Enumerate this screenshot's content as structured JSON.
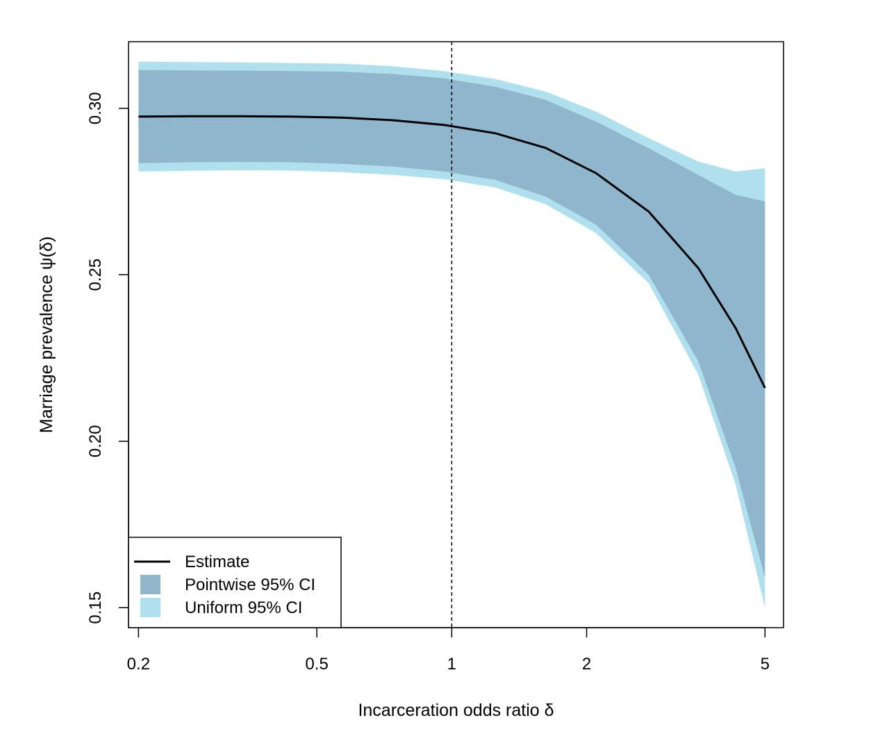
{
  "chart_data": {
    "type": "area",
    "xlabel": "Incarceration odds ratio δ",
    "ylabel": "Marriage prevalence ψ(δ)",
    "x_scale": "log",
    "xlim": [
      0.19,
      5.5
    ],
    "ylim": [
      0.144,
      0.32
    ],
    "x_ticks": [
      {
        "value": 0.2,
        "label": "0.2"
      },
      {
        "value": 0.5,
        "label": "0.5"
      },
      {
        "value": 1,
        "label": "1"
      },
      {
        "value": 2,
        "label": "2"
      },
      {
        "value": 5,
        "label": "5"
      }
    ],
    "y_ticks": [
      {
        "value": 0.15,
        "label": "0.15"
      },
      {
        "value": 0.2,
        "label": "0.20"
      },
      {
        "value": 0.25,
        "label": "0.25"
      },
      {
        "value": 0.3,
        "label": "0.30"
      }
    ],
    "reference_line": {
      "x": 1,
      "style": "dashed"
    },
    "x": [
      0.2,
      0.26,
      0.34,
      0.44,
      0.57,
      0.74,
      0.96,
      1.25,
      1.62,
      2.1,
      2.75,
      3.55,
      4.3,
      5.0
    ],
    "series": [
      {
        "name": "Estimate",
        "color": "#000000",
        "values": [
          0.2975,
          0.2976,
          0.2976,
          0.2975,
          0.2972,
          0.2964,
          0.295,
          0.2925,
          0.2881,
          0.2805,
          0.269,
          0.252,
          0.234,
          0.216
        ]
      },
      {
        "name": "Pointwise 95% CI",
        "color": "#8fb6cc",
        "lower": [
          0.2835,
          0.2838,
          0.2839,
          0.2838,
          0.2833,
          0.2825,
          0.281,
          0.2785,
          0.2735,
          0.265,
          0.25,
          0.224,
          0.192,
          0.159
        ],
        "upper": [
          0.3115,
          0.3114,
          0.3113,
          0.3112,
          0.311,
          0.3103,
          0.309,
          0.3065,
          0.3025,
          0.296,
          0.288,
          0.28,
          0.274,
          0.272
        ]
      },
      {
        "name": "Uniform 95% CI",
        "color": "#b0dfed",
        "lower": [
          0.281,
          0.2812,
          0.2814,
          0.2813,
          0.2808,
          0.28,
          0.2787,
          0.2762,
          0.2712,
          0.2625,
          0.2475,
          0.22,
          0.187,
          0.15
        ],
        "upper": [
          0.314,
          0.3139,
          0.3138,
          0.3136,
          0.3134,
          0.3126,
          0.3112,
          0.3088,
          0.305,
          0.299,
          0.291,
          0.284,
          0.281,
          0.282
        ]
      }
    ],
    "legend": {
      "position": "bottom-left",
      "items": [
        {
          "label": "Estimate",
          "kind": "line",
          "color": "#000000"
        },
        {
          "label": "Pointwise 95% CI",
          "kind": "box",
          "color": "#8fb6cc"
        },
        {
          "label": "Uniform 95% CI",
          "kind": "box",
          "color": "#b0dfed"
        }
      ]
    },
    "grid": false
  }
}
